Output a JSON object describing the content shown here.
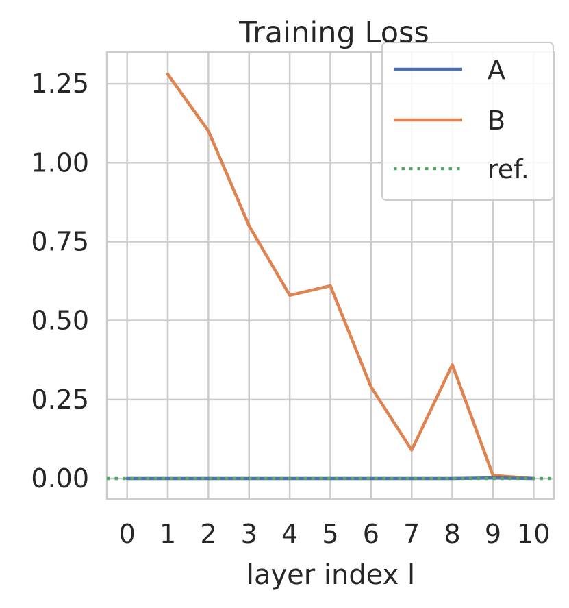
{
  "chart_data": {
    "type": "line",
    "title": "Training Loss",
    "xlabel": "layer index l",
    "ylabel": "",
    "x_ticks": [
      "0",
      "1",
      "2",
      "3",
      "4",
      "5",
      "6",
      "7",
      "8",
      "9",
      "10"
    ],
    "y_ticks": [
      "0.00",
      "0.25",
      "0.50",
      "0.75",
      "1.00",
      "1.25"
    ],
    "xlim": [
      -0.5,
      10.5
    ],
    "ylim": [
      -0.065,
      1.35
    ],
    "grid": true,
    "legend_position": "top-right",
    "series": [
      {
        "name": "A",
        "color": "#4c72b0",
        "style": "solid",
        "x": [
          0,
          1,
          2,
          3,
          4,
          5,
          6,
          7,
          8,
          9,
          10
        ],
        "y": [
          0,
          0,
          0,
          0,
          0,
          0,
          0,
          0,
          0,
          0.002,
          0.0
        ]
      },
      {
        "name": "B",
        "color": "#dd8452",
        "style": "solid",
        "x": [
          1,
          2,
          3,
          4,
          5,
          6,
          7,
          8,
          9,
          10
        ],
        "y": [
          1.28,
          1.1,
          0.8,
          0.58,
          0.61,
          0.29,
          0.09,
          0.36,
          0.01,
          0.0
        ]
      },
      {
        "name": "ref.",
        "color": "#55a868",
        "style": "dotted",
        "x": [
          -0.5,
          10.5
        ],
        "y": [
          0,
          0
        ]
      }
    ]
  }
}
